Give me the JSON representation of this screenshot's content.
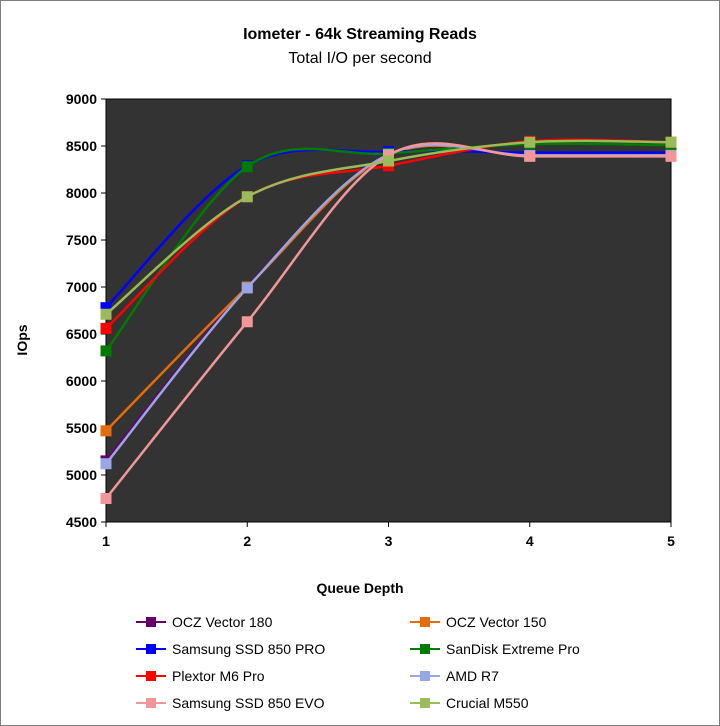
{
  "chart_data": {
    "type": "line",
    "title": "Iometer - 64k Streaming Reads",
    "subtitle": "Total I/O per second",
    "xlabel": "Queue Depth",
    "ylabel": "IOps",
    "x": [
      1,
      2,
      3,
      4,
      5
    ],
    "x_tick_labels": [
      "1",
      "2",
      "3",
      "4",
      "5"
    ],
    "ylim": [
      4500,
      9000
    ],
    "y_tick_labels": [
      "4500",
      "5000",
      "5500",
      "6000",
      "6500",
      "7000",
      "7500",
      "8000",
      "8500",
      "9000"
    ],
    "grid": false,
    "plot_background": "#333333",
    "legend_position": "bottom",
    "series": [
      {
        "name": "OCZ Vector 180",
        "color": "#660066",
        "values": [
          5150,
          7000,
          8400,
          8400,
          8400
        ]
      },
      {
        "name": "OCZ Vector 150",
        "color": "#e46c0a",
        "values": [
          5470,
          7000,
          8400,
          8400,
          8400
        ]
      },
      {
        "name": "Samsung SSD 850 PRO",
        "color": "#0000ff",
        "values": [
          6780,
          8290,
          8440,
          8430,
          8430
        ]
      },
      {
        "name": "SanDisk Extreme Pro",
        "color": "#007a00",
        "values": [
          6320,
          8280,
          8420,
          8520,
          8510
        ]
      },
      {
        "name": "Plextor M6 Pro",
        "color": "#ff0000",
        "values": [
          6560,
          7960,
          8290,
          8550,
          8540
        ]
      },
      {
        "name": "AMD R7",
        "color": "#99a6e6",
        "values": [
          5120,
          6990,
          8410,
          8400,
          8400
        ]
      },
      {
        "name": "Samsung SSD 850 EVO",
        "color": "#f29799",
        "values": [
          4750,
          6630,
          8400,
          8390,
          8390
        ]
      },
      {
        "name": "Crucial M550",
        "color": "#9bbb59",
        "values": [
          6710,
          7960,
          8340,
          8540,
          8540
        ]
      }
    ]
  }
}
